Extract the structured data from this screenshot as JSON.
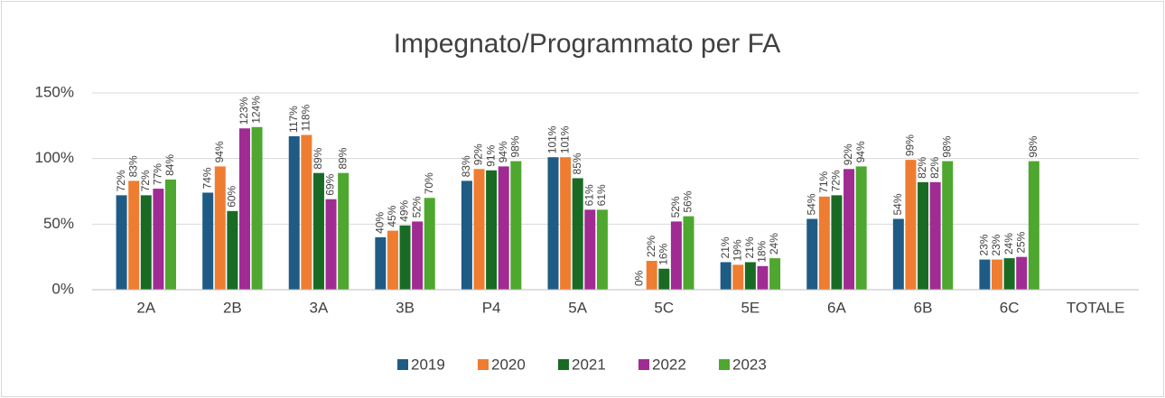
{
  "chart_data": {
    "type": "bar",
    "title": "Impegnato/Programmato per FA",
    "categories": [
      "2A",
      "2B",
      "3A",
      "3B",
      "P4",
      "5A",
      "5C",
      "5E",
      "6A",
      "6B",
      "6C",
      "TOTALE"
    ],
    "series": [
      {
        "name": "2019",
        "color": "#1f5c85",
        "values": [
          72,
          74,
          117,
          40,
          83,
          101,
          0,
          21,
          54,
          54,
          23,
          null
        ],
        "value_labels": [
          "72%",
          "74%",
          "117%",
          "40%",
          "83%",
          "101%",
          "0%",
          "21%",
          "54%",
          "54%",
          "23%",
          null
        ]
      },
      {
        "name": "2020",
        "color": "#ee7d31",
        "values": [
          83,
          94,
          118,
          45,
          92,
          101,
          22,
          19,
          71,
          99,
          23,
          null
        ],
        "value_labels": [
          "83%",
          "94%",
          "118%",
          "45%",
          "92%",
          "101%",
          "22%",
          "19%",
          "71%",
          "99%",
          "23%",
          null
        ]
      },
      {
        "name": "2021",
        "color": "#196b24",
        "values": [
          72,
          60,
          89,
          49,
          91,
          85,
          16,
          21,
          72,
          82,
          24,
          null
        ],
        "value_labels": [
          "72%",
          "60%",
          "89%",
          "49%",
          "91%",
          "85%",
          "16%",
          "21%",
          "72%",
          "82%",
          "24%",
          null
        ]
      },
      {
        "name": "2022",
        "color": "#a02b93",
        "values": [
          77,
          123,
          69,
          52,
          94,
          61,
          52,
          18,
          92,
          82,
          25,
          null
        ],
        "value_labels": [
          "77%",
          "123%",
          "69%",
          "52%",
          "94%",
          "61%",
          "52%",
          "18%",
          "92%",
          "82%",
          "25%",
          null
        ]
      },
      {
        "name": "2023",
        "color": "#4ea72e",
        "values": [
          84,
          124,
          89,
          70,
          98,
          61,
          56,
          24,
          94,
          98,
          98,
          null
        ],
        "value_labels": [
          "84%",
          "124%",
          "89%",
          "70%",
          "98%",
          "61%",
          "56%",
          "24%",
          "94%",
          "98%",
          "98%",
          null
        ]
      }
    ],
    "ylim": [
      0,
      150
    ],
    "yticks": [
      {
        "value": 0,
        "label": "0%"
      },
      {
        "value": 50,
        "label": "50%"
      },
      {
        "value": 100,
        "label": "100%"
      },
      {
        "value": 150,
        "label": "150%"
      }
    ],
    "grid": true,
    "legend": "bottom"
  }
}
